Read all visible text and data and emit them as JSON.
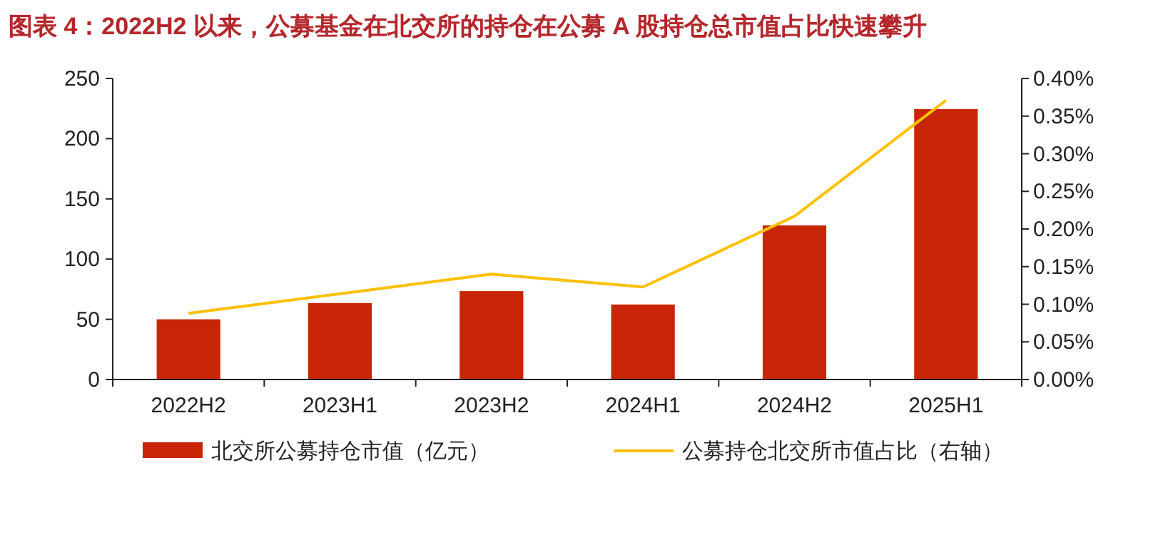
{
  "chart_data": {
    "type": "bar",
    "title": "图表 4：2022H2 以来，公募基金在北交所的持仓在公募 A 股持仓总市值占比快速攀升",
    "categories": [
      "2022H2",
      "2023H1",
      "2023H2",
      "2024H1",
      "2024H2",
      "2025H1"
    ],
    "series": [
      {
        "name": "北交所公募持仓市值（亿元）",
        "color": "#c82506",
        "values": [
          50,
          63.5,
          73.4,
          62.3,
          128,
          224.6
        ]
      },
      {
        "name": "公募持仓北交所市值占比（右轴）",
        "type": "line",
        "axis": "y2",
        "color": "#ffc000",
        "values": [
          0.088,
          0.114,
          0.14,
          0.123,
          0.217,
          0.371
        ]
      }
    ],
    "ylim": [
      0,
      250
    ],
    "yticks": [
      0,
      50,
      100,
      150,
      200,
      250
    ],
    "y2lim": [
      0,
      0.4
    ],
    "y2ticks": [
      {
        "value": 0,
        "label": "0.00%"
      },
      {
        "value": 0.05,
        "label": "0.05%"
      },
      {
        "value": 0.1,
        "label": "0.10%"
      },
      {
        "value": 0.15,
        "label": "0.15%"
      },
      {
        "value": 0.2,
        "label": "0.20%"
      },
      {
        "value": 0.25,
        "label": "0.25%"
      },
      {
        "value": 0.3,
        "label": "0.30%"
      },
      {
        "value": 0.35,
        "label": "0.35%"
      },
      {
        "value": 0.4,
        "label": "0.40%"
      }
    ],
    "grid": false,
    "legend": "bottom",
    "marker": "none",
    "line_style": "solid"
  }
}
